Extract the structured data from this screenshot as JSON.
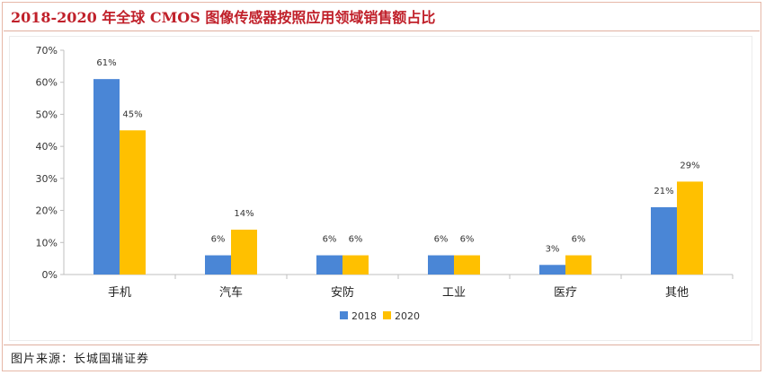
{
  "title": "2018-2020 年全球 CMOS 图像传感器按照应用领域销售额占比",
  "source": "图片来源：长城国瑞证券",
  "chart_data": {
    "type": "bar",
    "title": "2018-2020 年全球 CMOS 图像传感器按照应用领域销售额占比",
    "categories": [
      "手机",
      "汽车",
      "安防",
      "工业",
      "医疗",
      "其他"
    ],
    "series": [
      {
        "name": "2018",
        "values": [
          61,
          6,
          6,
          6,
          3,
          21
        ],
        "labels": [
          "61%",
          "6%",
          "6%",
          "6%",
          "3%",
          "21%"
        ],
        "color": "#4a86d6"
      },
      {
        "name": "2020",
        "values": [
          45,
          14,
          6,
          6,
          6,
          29
        ],
        "labels": [
          "45%",
          "14%",
          "6%",
          "6%",
          "6%",
          "29%"
        ],
        "color": "#ffc000"
      }
    ],
    "yticks": [
      "0%",
      "10%",
      "20%",
      "30%",
      "40%",
      "50%",
      "60%",
      "70%"
    ],
    "ylim": [
      0,
      70
    ],
    "xlabel": "",
    "ylabel": "",
    "legend_position": "bottom",
    "grid": false
  }
}
